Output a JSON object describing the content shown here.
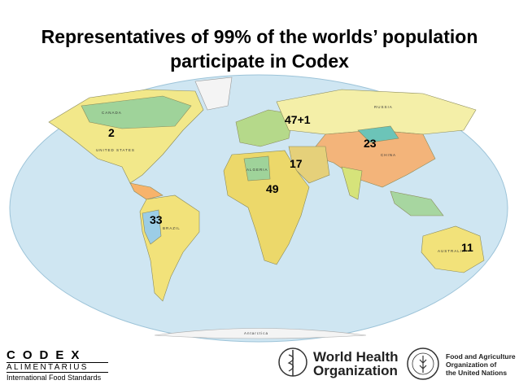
{
  "title": "Representatives of 99% of the worlds’ population participate in Codex",
  "regions": [
    {
      "label": "2"
    },
    {
      "label": "47+1"
    },
    {
      "label": "23"
    },
    {
      "label": "17"
    },
    {
      "label": "49"
    },
    {
      "label": "33"
    },
    {
      "label": "11"
    }
  ],
  "map_labels": [
    "CANADA",
    "UNITED STATES",
    "RUSSIA",
    "CHINA",
    "BRAZIL",
    "AUSTRALIA",
    "ALGERIA",
    "Antarctica"
  ],
  "logos": {
    "codex": "CODEX",
    "alimentarius": "ALIMENTARIUS",
    "codex_tagline": "International Food Standards",
    "who_line1": "World Health",
    "who_line2": "Organization",
    "fao_line1": "Food and Agriculture",
    "fao_line2": "Organization of",
    "fao_line3": "the United Nations"
  }
}
